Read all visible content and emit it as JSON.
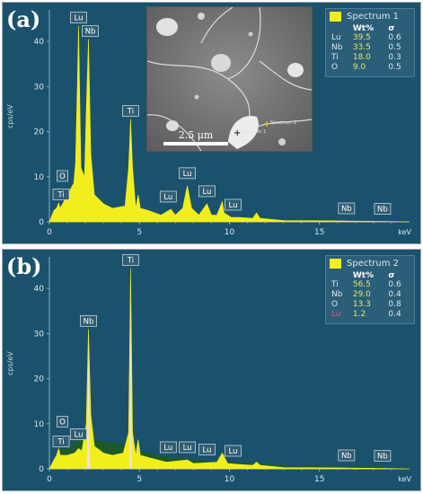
{
  "chart_data": [
    {
      "type": "line",
      "panel_label": "(a)",
      "ylabel": "cps/eV",
      "xlabel": "keV",
      "xlim": [
        0,
        20
      ],
      "ylim": [
        0,
        47
      ],
      "x_ticks": [
        "0",
        "5",
        "10",
        "15"
      ],
      "y_ticks": [
        "0",
        "10",
        "20",
        "30",
        "40"
      ],
      "spectrum_color": "#f2ee1e",
      "series": [
        {
          "name": "Spectrum 1",
          "x": [
            0.0,
            0.25,
            0.4,
            0.52,
            0.6,
            0.8,
            1.0,
            1.2,
            1.35,
            1.45,
            1.55,
            1.62,
            1.75,
            1.95,
            2.05,
            2.17,
            2.3,
            2.5,
            3.0,
            3.5,
            4.2,
            4.4,
            4.51,
            4.62,
            4.8,
            4.93,
            5.05,
            5.5,
            6.2,
            6.75,
            7.0,
            7.4,
            7.66,
            7.9,
            8.3,
            8.75,
            9.0,
            9.3,
            9.6,
            9.7,
            10.1,
            10.5,
            11.3,
            11.5,
            11.7,
            13.0,
            16.5,
            18.6,
            20.0
          ],
          "y": [
            0.0,
            2.5,
            3.0,
            4.2,
            3.0,
            4.5,
            5.5,
            7.5,
            8.5,
            13.0,
            30.0,
            43.5,
            12.0,
            10.0,
            25.0,
            40.5,
            15.0,
            6.0,
            4.0,
            3.0,
            3.5,
            12.0,
            22.8,
            12.0,
            3.0,
            6.0,
            3.0,
            2.5,
            1.5,
            2.8,
            1.5,
            3.0,
            8.0,
            3.0,
            1.5,
            4.0,
            1.5,
            1.5,
            4.5,
            2.0,
            1.0,
            1.0,
            0.8,
            2.0,
            0.8,
            0.3,
            0.2,
            0.1,
            0.0
          ]
        }
      ],
      "peak_labels": [
        {
          "label": "Lu",
          "x": 1.62,
          "y": 43.5
        },
        {
          "label": "Nb",
          "x": 2.17,
          "y": 40.5
        },
        {
          "label": "Ti",
          "x": 4.51,
          "y": 22.8
        },
        {
          "label": "O",
          "x": 0.52,
          "y": 4.2
        },
        {
          "label": "Ti",
          "x": 0.45,
          "y": 3.3
        },
        {
          "label": "Lu",
          "x": 7.66,
          "y": 8.0
        },
        {
          "label": "Lu",
          "x": 6.75,
          "y": 2.8
        },
        {
          "label": "Lu",
          "x": 8.75,
          "y": 4.0
        },
        {
          "label": "Lu",
          "x": 10.0,
          "y": 1.0
        },
        {
          "label": "Nb",
          "x": 16.6,
          "y": 0.2
        },
        {
          "label": "Nb",
          "x": 18.6,
          "y": 0.1
        }
      ],
      "legend": {
        "title": "Spectrum 1",
        "header": [
          "Wt%",
          "σ"
        ],
        "rows": [
          {
            "el": "Lu",
            "wt": "39.5",
            "sigma": "0.6"
          },
          {
            "el": "Nb",
            "wt": "33.5",
            "sigma": "0.5"
          },
          {
            "el": "Ti",
            "wt": "18.0",
            "sigma": "0.3"
          },
          {
            "el": "O",
            "wt": "9.0",
            "sigma": "0.5"
          }
        ]
      },
      "inset": {
        "scale_bar": "2.5 μm",
        "markers": [
          "Spectrum 1",
          "Spectrum 2"
        ]
      }
    },
    {
      "type": "line",
      "panel_label": "(b)",
      "ylabel": "cps/eV",
      "xlabel": "keV",
      "xlim": [
        0,
        20
      ],
      "ylim": [
        0,
        47
      ],
      "x_ticks": [
        "0",
        "5",
        "10",
        "15"
      ],
      "y_ticks": [
        "0",
        "10",
        "20",
        "30",
        "40"
      ],
      "spectrum_color": "#f2ee1e",
      "series": [
        {
          "name": "Spectrum 2",
          "x": [
            0.0,
            0.25,
            0.4,
            0.52,
            0.6,
            1.0,
            1.4,
            1.62,
            1.8,
            2.05,
            2.17,
            2.3,
            2.5,
            3.0,
            3.5,
            4.1,
            4.4,
            4.51,
            4.62,
            4.8,
            4.93,
            5.05,
            5.5,
            6.5,
            7.66,
            8.0,
            9.3,
            9.6,
            9.9,
            10.5,
            11.3,
            11.5,
            11.7,
            13.0,
            16.5,
            18.6,
            20.0
          ],
          "y": [
            0.0,
            2.0,
            3.0,
            4.5,
            3.0,
            3.0,
            3.5,
            4.5,
            4.0,
            10.0,
            31.0,
            12.0,
            5.0,
            3.5,
            3.0,
            3.5,
            8.0,
            44.5,
            8.0,
            3.0,
            6.5,
            3.0,
            2.5,
            1.5,
            2.0,
            1.2,
            1.5,
            3.5,
            1.2,
            1.0,
            0.8,
            1.5,
            0.8,
            0.3,
            0.2,
            0.1,
            0.0
          ]
        }
      ],
      "peak_labels": [
        {
          "label": "Ti",
          "x": 4.51,
          "y": 44.5
        },
        {
          "label": "Nb",
          "x": 2.17,
          "y": 31.0
        },
        {
          "label": "O",
          "x": 0.52,
          "y": 4.5
        },
        {
          "label": "Ti",
          "x": 0.45,
          "y": 3.3
        },
        {
          "label": "Lu",
          "x": 1.62,
          "y": 4.5
        },
        {
          "label": "Lu",
          "x": 6.75,
          "y": 2.0
        },
        {
          "label": "Lu",
          "x": 7.66,
          "y": 2.0
        },
        {
          "label": "Lu",
          "x": 8.75,
          "y": 1.5
        },
        {
          "label": "Lu",
          "x": 10.0,
          "y": 1.2
        },
        {
          "label": "Nb",
          "x": 16.6,
          "y": 0.2
        },
        {
          "label": "Nb",
          "x": 18.6,
          "y": 0.1
        }
      ],
      "legend": {
        "title": "Spectrum 2",
        "header": [
          "Wt%",
          "σ"
        ],
        "rows": [
          {
            "el": "Ti",
            "wt": "56.5",
            "sigma": "0.6"
          },
          {
            "el": "Nb",
            "wt": "29.0",
            "sigma": "0.4"
          },
          {
            "el": "O",
            "wt": "13.3",
            "sigma": "0.8"
          },
          {
            "el": "Lu",
            "wt": "1.2",
            "sigma": "0.4"
          }
        ]
      }
    }
  ]
}
